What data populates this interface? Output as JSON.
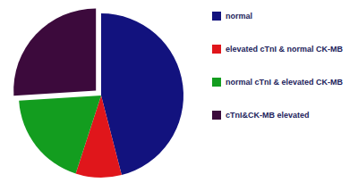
{
  "chart_data": {
    "type": "pie",
    "categories": [
      "normal",
      "elevated cTnI & normal CK-MB",
      "normal cTnI & elevated CK-MB",
      "cTnI&CK-MB elevated"
    ],
    "values": [
      46,
      9,
      19,
      26
    ],
    "colors": [
      "#12127e",
      "#e0161b",
      "#139d1f",
      "#3c0a3c"
    ],
    "legend": "right"
  }
}
